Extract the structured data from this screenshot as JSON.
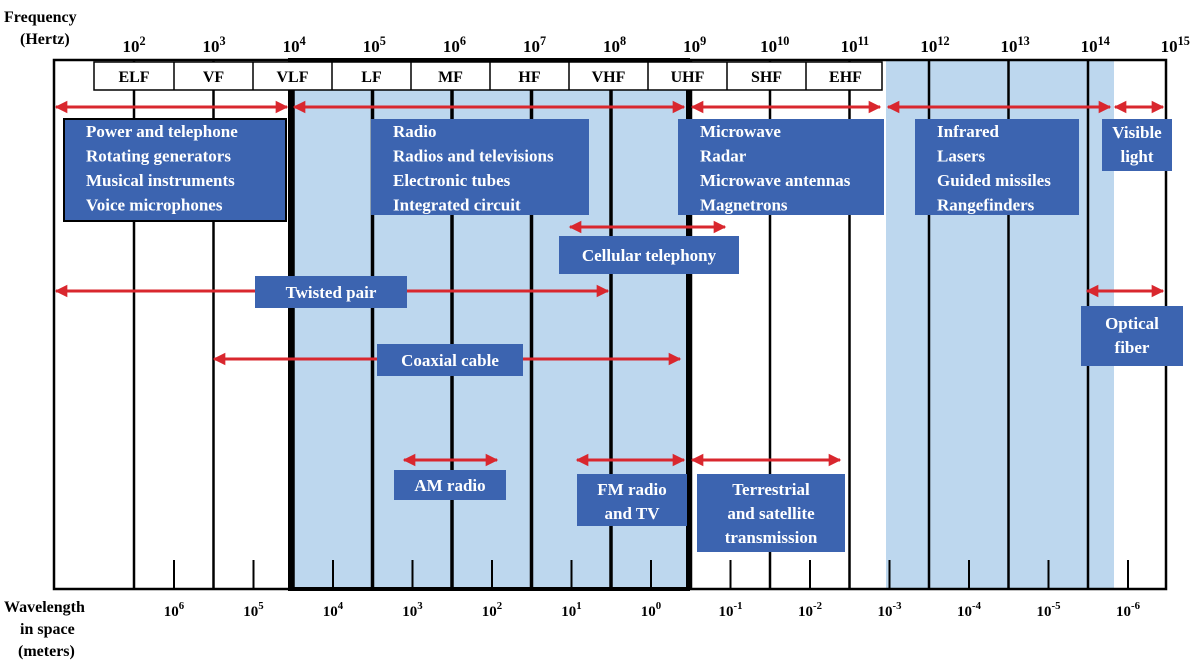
{
  "axis": {
    "freq_label": [
      "Frequency",
      "(Hertz)"
    ],
    "wavelength_label": [
      "Wavelength",
      "in space",
      "(meters)"
    ],
    "freq_ticks": [
      {
        "base": "10",
        "exp": "2"
      },
      {
        "base": "10",
        "exp": "3"
      },
      {
        "base": "10",
        "exp": "4"
      },
      {
        "base": "10",
        "exp": "5"
      },
      {
        "base": "10",
        "exp": "6"
      },
      {
        "base": "10",
        "exp": "7"
      },
      {
        "base": "10",
        "exp": "8"
      },
      {
        "base": "10",
        "exp": "9"
      },
      {
        "base": "10",
        "exp": "10"
      },
      {
        "base": "10",
        "exp": "11"
      },
      {
        "base": "10",
        "exp": "12"
      },
      {
        "base": "10",
        "exp": "13"
      },
      {
        "base": "10",
        "exp": "14"
      },
      {
        "base": "10",
        "exp": "15"
      }
    ],
    "wave_ticks": [
      {
        "base": "10",
        "exp": "6"
      },
      {
        "base": "10",
        "exp": "5"
      },
      {
        "base": "10",
        "exp": "4"
      },
      {
        "base": "10",
        "exp": "3"
      },
      {
        "base": "10",
        "exp": "2"
      },
      {
        "base": "10",
        "exp": "1"
      },
      {
        "base": "10",
        "exp": "0"
      },
      {
        "base": "10",
        "exp": "-1"
      },
      {
        "base": "10",
        "exp": "-2"
      },
      {
        "base": "10",
        "exp": "-3"
      },
      {
        "base": "10",
        "exp": "-4"
      },
      {
        "base": "10",
        "exp": "-5"
      },
      {
        "base": "10",
        "exp": "-6"
      }
    ]
  },
  "bands": [
    "ELF",
    "VF",
    "VLF",
    "LF",
    "MF",
    "HF",
    "VHF",
    "UHF",
    "SHF",
    "EHF"
  ],
  "applications": [
    {
      "id": "power",
      "lines": [
        "Power and telephone",
        "Rotating generators",
        "Musical instruments",
        "Voice microphones"
      ]
    },
    {
      "id": "radio",
      "lines": [
        "Radio",
        "Radios and televisions",
        "Electronic tubes",
        "Integrated circuit"
      ]
    },
    {
      "id": "microwave",
      "lines": [
        "Microwave",
        "Radar",
        "Microwave antennas",
        "Magnetrons"
      ]
    },
    {
      "id": "infrared",
      "lines": [
        "Infrared",
        "Lasers",
        "Guided missiles",
        "Rangefinders"
      ]
    },
    {
      "id": "visible",
      "lines": [
        "Visible",
        "light"
      ]
    }
  ],
  "media": [
    {
      "id": "cellular",
      "lines": [
        "Cellular telephony"
      ]
    },
    {
      "id": "twisted-pair",
      "lines": [
        "Twisted pair"
      ]
    },
    {
      "id": "coaxial",
      "lines": [
        "Coaxial cable"
      ]
    },
    {
      "id": "optical-fiber",
      "lines": [
        "Optical",
        "fiber"
      ]
    },
    {
      "id": "am-radio",
      "lines": [
        "AM radio"
      ]
    },
    {
      "id": "fm-radio",
      "lines": [
        "FM radio",
        "and TV"
      ]
    },
    {
      "id": "terrestrial",
      "lines": [
        "Terrestrial",
        "and satellite",
        "transmission"
      ]
    }
  ],
  "colors": {
    "box_fill": "#3c64b0",
    "box_text": "#ffffff",
    "arrow": "#d9272e",
    "shade": "#bdd7ee",
    "frame": "#000000"
  }
}
